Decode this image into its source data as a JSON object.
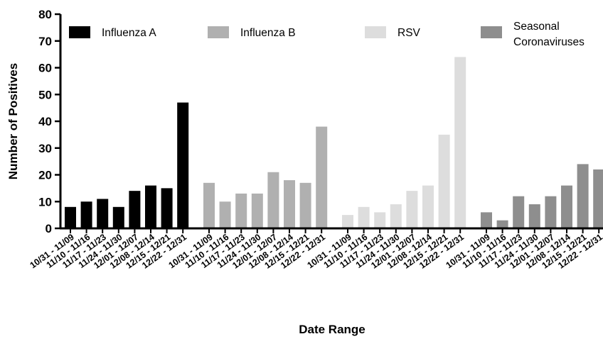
{
  "chart_data": {
    "type": "bar",
    "xlabel": "Date Range",
    "ylabel": "Number of Positives",
    "ylim": [
      0,
      80
    ],
    "yticks": [
      "0",
      "10",
      "20",
      "30",
      "40",
      "50",
      "60",
      "70",
      "80"
    ],
    "grid": false,
    "legend_position": "top",
    "categories": [
      "10/31 - 11/09",
      "11/10 - 11/16",
      "11/17 - 11/23",
      "11/24 - 11/30",
      "12/01 - 12/07",
      "12/08 - 12/14",
      "12/15 - 12/21",
      "12/22 - 12/31"
    ],
    "series": [
      {
        "name": "Influenza A",
        "color": "#000000",
        "values": [
          8,
          10,
          11,
          8,
          14,
          16,
          15,
          47
        ]
      },
      {
        "name": "Influenza B",
        "color": "#b0b0b0",
        "values": [
          17,
          10,
          13,
          13,
          21,
          18,
          17,
          38
        ]
      },
      {
        "name": "RSV",
        "color": "#dddddd",
        "values": [
          5,
          8,
          6,
          9,
          14,
          16,
          35,
          64
        ]
      },
      {
        "name": "Seasonal Coronaviruses",
        "legend_lines": [
          "Seasonal",
          "Coronaviruses"
        ],
        "color": "#8e8e8e",
        "values": [
          6,
          3,
          12,
          9,
          12,
          16,
          24,
          22
        ]
      }
    ]
  }
}
